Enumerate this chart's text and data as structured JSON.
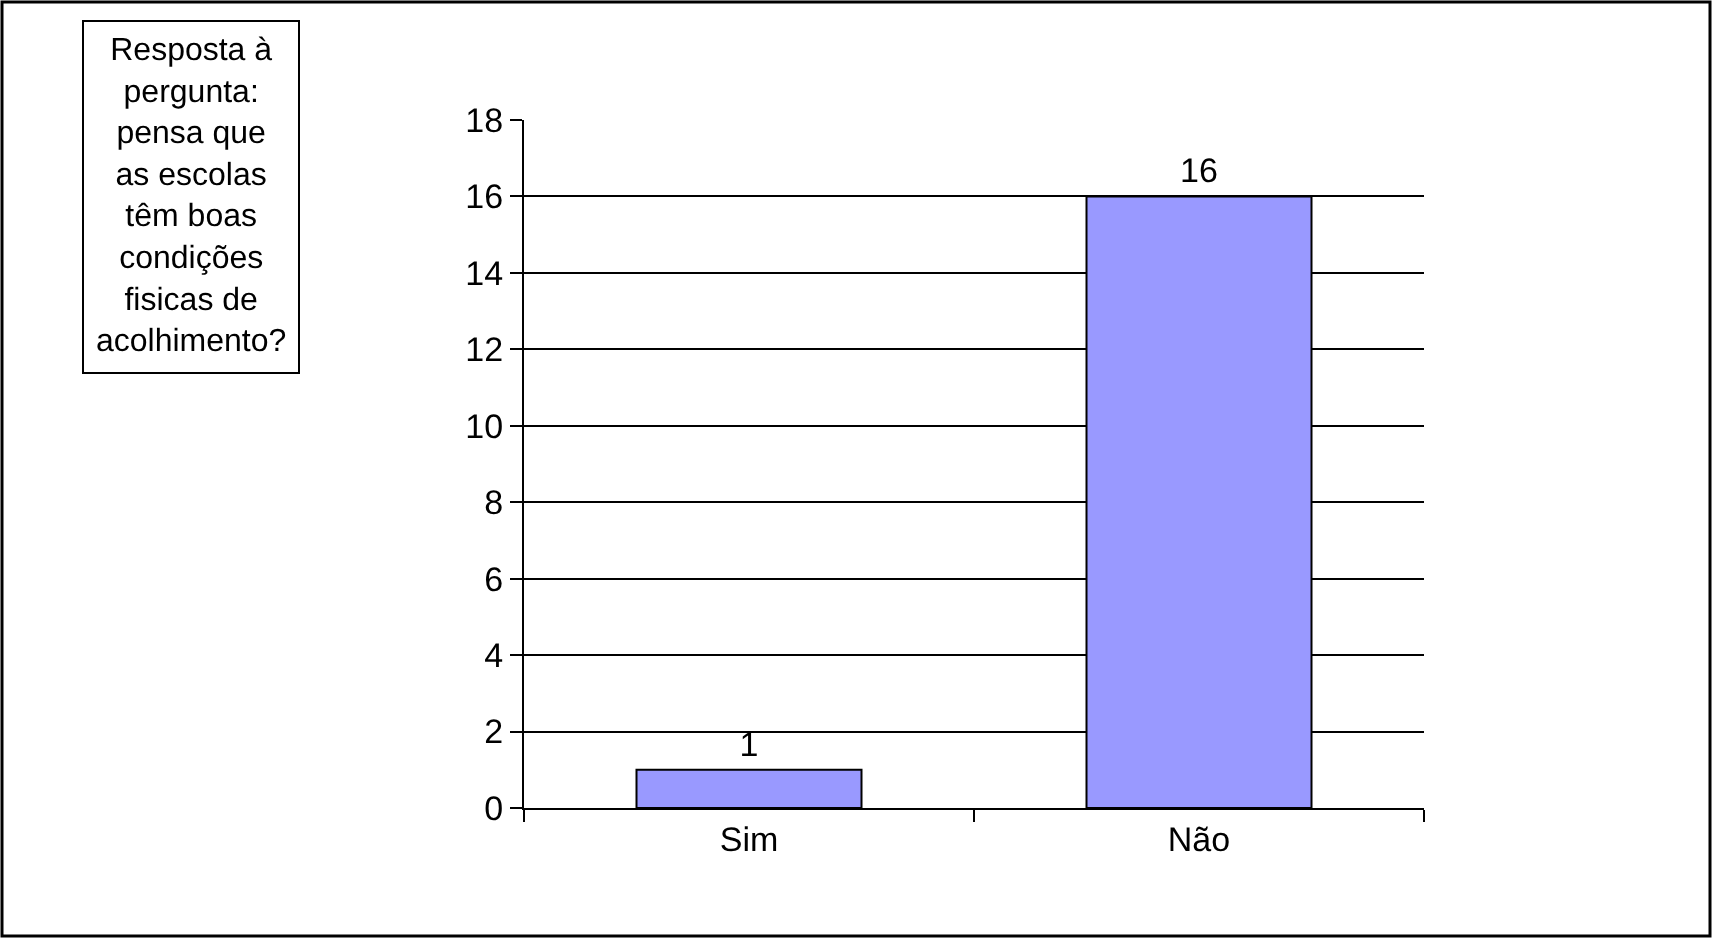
{
  "chart_data": {
    "type": "bar",
    "title": "Resposta à pergunta: pensa que as escolas têm boas condições fisicas de acolhimento?",
    "categories": [
      "Sim",
      "Não"
    ],
    "values": [
      1,
      16
    ],
    "color": "#9999ff",
    "ylim": [
      0,
      18
    ],
    "yticks": [
      0,
      2,
      4,
      6,
      8,
      10,
      12,
      14,
      16,
      18
    ],
    "grid": "y",
    "data_labels": true,
    "legend": false
  }
}
